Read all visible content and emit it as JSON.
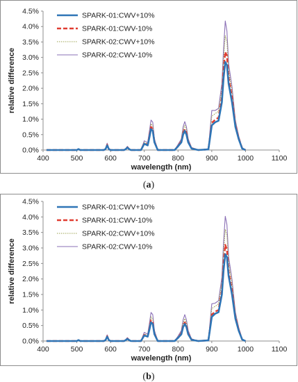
{
  "chart_data": [
    {
      "type": "line",
      "caption_open": "(",
      "caption_letter": "a",
      "caption_close": ")",
      "xlabel": "wavelength (nm)",
      "ylabel": "relative difference",
      "xlim": [
        400,
        1100
      ],
      "ylim": [
        0,
        0.045
      ],
      "xticks": [
        "400",
        "500",
        "600",
        "700",
        "800",
        "900",
        "1000",
        "1100"
      ],
      "yticks": [
        "0.0%",
        "0.5%",
        "1.0%",
        "1.5%",
        "2.0%",
        "2.5%",
        "3.0%",
        "3.5%",
        "4.0%",
        "4.5%"
      ],
      "grid": false,
      "legend_position": "top-left",
      "x": [
        410,
        500,
        505,
        510,
        580,
        585,
        590,
        595,
        600,
        640,
        645,
        650,
        655,
        660,
        690,
        700,
        710,
        715,
        720,
        725,
        730,
        740,
        790,
        800,
        810,
        815,
        820,
        825,
        830,
        840,
        860,
        890,
        900,
        910,
        920,
        930,
        935,
        940,
        945,
        950,
        960,
        970,
        980,
        990,
        1000
      ],
      "series": [
        {
          "name": "SPARK-01:CWV+10%",
          "color": "#2e75b6",
          "style": "solid-thick",
          "values": [
            0,
            0,
            0.0003,
            0,
            0,
            0.0003,
            0.0015,
            0.0003,
            0,
            0,
            0.0003,
            0.0008,
            0.0003,
            0,
            0,
            0.002,
            0.0015,
            0.004,
            0.0068,
            0.0062,
            0.0025,
            0,
            0,
            0.0012,
            0.0025,
            0.005,
            0.0062,
            0.005,
            0.0025,
            0.0005,
            0,
            0.0002,
            0.008,
            0.009,
            0.0095,
            0.0155,
            0.0235,
            0.0285,
            0.0275,
            0.0215,
            0.0155,
            0.0075,
            0.0035,
            0.0005,
            0
          ]
        },
        {
          "name": "SPARK-01:CWV-10%",
          "color": "#e03c31",
          "style": "dashed-thick",
          "values": [
            0,
            0,
            0.0003,
            0,
            0,
            0.0003,
            0.0017,
            0.0003,
            0,
            0,
            0.0003,
            0.0009,
            0.0003,
            0,
            0,
            0.0022,
            0.0017,
            0.0045,
            0.0075,
            0.0068,
            0.0028,
            0,
            0,
            0.0013,
            0.0028,
            0.0055,
            0.0068,
            0.0055,
            0.0028,
            0.0006,
            0,
            0.0002,
            0.0088,
            0.0098,
            0.0105,
            0.017,
            0.026,
            0.0318,
            0.0305,
            0.0235,
            0.017,
            0.0082,
            0.0038,
            0.0006,
            0
          ]
        },
        {
          "name": "SPARK-02:CWV+10%",
          "color": "#9aa04e",
          "style": "dotted-thin",
          "values": [
            0,
            0,
            0.0003,
            0,
            0,
            0.0004,
            0.0019,
            0.0004,
            0,
            0,
            0.0004,
            0.001,
            0.0004,
            0,
            0,
            0.0025,
            0.002,
            0.005,
            0.0085,
            0.0078,
            0.0032,
            0,
            0,
            0.0015,
            0.0032,
            0.0065,
            0.008,
            0.0065,
            0.0032,
            0.0007,
            0,
            0.0003,
            0.011,
            0.0118,
            0.0125,
            0.0195,
            0.0295,
            0.037,
            0.035,
            0.026,
            0.019,
            0.009,
            0.0042,
            0.0007,
            0
          ]
        },
        {
          "name": "SPARK-02:CWV-10%",
          "color": "#8a6fb5",
          "style": "solid-thin",
          "values": [
            0,
            0,
            0.0004,
            0,
            0,
            0.0005,
            0.0022,
            0.0005,
            0,
            0,
            0.0005,
            0.0012,
            0.0005,
            0,
            0,
            0.003,
            0.0024,
            0.006,
            0.0097,
            0.009,
            0.0036,
            0,
            0,
            0.0018,
            0.0036,
            0.0075,
            0.0092,
            0.0075,
            0.0036,
            0.0008,
            0,
            0.0004,
            0.0128,
            0.0128,
            0.0135,
            0.0215,
            0.033,
            0.0418,
            0.0385,
            0.028,
            0.0205,
            0.0095,
            0.0045,
            0.0008,
            0
          ]
        }
      ]
    },
    {
      "type": "line",
      "caption_open": "(",
      "caption_letter": "b",
      "caption_close": ")",
      "xlabel": "wavelength (nm)",
      "ylabel": "relative difference",
      "xlim": [
        400,
        1100
      ],
      "ylim": [
        0,
        0.045
      ],
      "xticks": [
        "400",
        "500",
        "600",
        "700",
        "800",
        "900",
        "1000",
        "1100"
      ],
      "yticks": [
        "0.0%",
        "0.5%",
        "1.0%",
        "1.5%",
        "2.0%",
        "2.5%",
        "3.0%",
        "3.5%",
        "4.0%",
        "4.5%"
      ],
      "grid": false,
      "legend_position": "top-left",
      "x": [
        410,
        500,
        505,
        510,
        580,
        585,
        590,
        595,
        600,
        640,
        645,
        650,
        655,
        660,
        690,
        700,
        710,
        715,
        720,
        725,
        730,
        740,
        790,
        800,
        810,
        815,
        820,
        825,
        830,
        840,
        860,
        890,
        900,
        910,
        920,
        930,
        935,
        940,
        945,
        950,
        960,
        970,
        980,
        990,
        1000
      ],
      "series": [
        {
          "name": "SPARK-01:CWV+10%",
          "color": "#2e75b6",
          "style": "solid-thick",
          "values": [
            0,
            0,
            0.0003,
            0,
            0,
            0.0003,
            0.0014,
            0.0003,
            0,
            0,
            0.0003,
            0.0007,
            0.0003,
            0,
            0,
            0.0018,
            0.0014,
            0.0036,
            0.006,
            0.0055,
            0.0022,
            0,
            0,
            0.001,
            0.0022,
            0.0045,
            0.0055,
            0.0045,
            0.0022,
            0.0004,
            0,
            0.0002,
            0.0078,
            0.0088,
            0.0093,
            0.015,
            0.023,
            0.028,
            0.027,
            0.021,
            0.015,
            0.0072,
            0.0033,
            0.0005,
            0
          ]
        },
        {
          "name": "SPARK-01:CWV-10%",
          "color": "#e03c31",
          "style": "dashed-thick",
          "values": [
            0,
            0,
            0.0003,
            0,
            0,
            0.0003,
            0.0016,
            0.0003,
            0,
            0,
            0.0003,
            0.0008,
            0.0003,
            0,
            0,
            0.002,
            0.0016,
            0.004,
            0.0066,
            0.006,
            0.0025,
            0,
            0,
            0.0011,
            0.0025,
            0.005,
            0.006,
            0.005,
            0.0025,
            0.0005,
            0,
            0.0002,
            0.0085,
            0.0095,
            0.01,
            0.0162,
            0.025,
            0.031,
            0.0295,
            0.0225,
            0.0162,
            0.0078,
            0.0036,
            0.0005,
            0
          ]
        },
        {
          "name": "SPARK-02:CWV+10%",
          "color": "#9aa04e",
          "style": "dotted-thin",
          "values": [
            0,
            0,
            0.0003,
            0,
            0,
            0.0004,
            0.0018,
            0.0004,
            0,
            0,
            0.0004,
            0.0009,
            0.0004,
            0,
            0,
            0.0023,
            0.0018,
            0.0046,
            0.0078,
            0.007,
            0.0029,
            0,
            0,
            0.0013,
            0.0029,
            0.0058,
            0.0072,
            0.0058,
            0.0029,
            0.0006,
            0,
            0.0003,
            0.0105,
            0.0112,
            0.012,
            0.019,
            0.029,
            0.036,
            0.034,
            0.0255,
            0.0185,
            0.0088,
            0.004,
            0.0006,
            0
          ]
        },
        {
          "name": "SPARK-02:CWV-10%",
          "color": "#8a6fb5",
          "style": "solid-thin",
          "values": [
            0,
            0,
            0.0004,
            0,
            0,
            0.0005,
            0.002,
            0.0005,
            0,
            0,
            0.0005,
            0.0011,
            0.0005,
            0,
            0,
            0.0028,
            0.0022,
            0.0055,
            0.0092,
            0.0085,
            0.0034,
            0,
            0,
            0.0016,
            0.0034,
            0.0068,
            0.0085,
            0.0068,
            0.0034,
            0.0007,
            0,
            0.0004,
            0.012,
            0.0122,
            0.013,
            0.0205,
            0.032,
            0.0402,
            0.0375,
            0.0272,
            0.0198,
            0.0092,
            0.0043,
            0.0007,
            0
          ]
        }
      ]
    }
  ]
}
